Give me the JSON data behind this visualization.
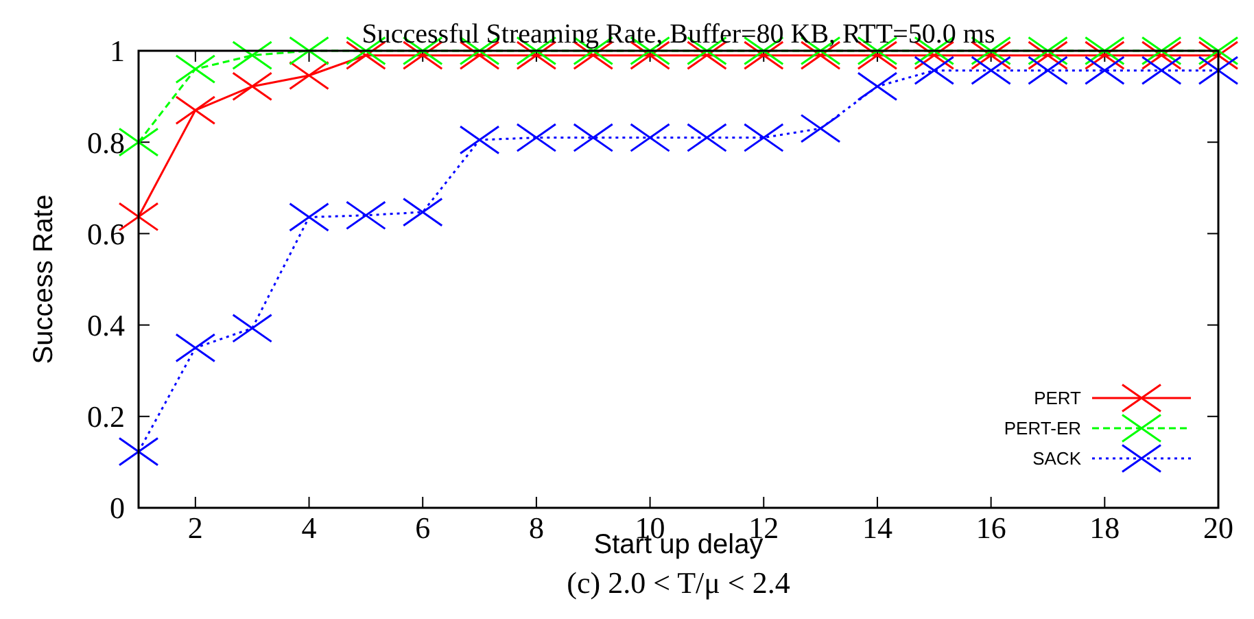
{
  "chart_data": {
    "type": "line",
    "title": "Successful Streaming Rate, Buffer=80 KB, RTT=50.0 ms",
    "xlabel": "Start up delay",
    "ylabel": "Success Rate",
    "annotations": [
      "(c) 2.0 < T/μ < 2.4"
    ],
    "x": [
      1,
      2,
      3,
      4,
      5,
      6,
      7,
      8,
      9,
      10,
      11,
      12,
      13,
      14,
      15,
      16,
      17,
      18,
      19,
      20
    ],
    "xlim": [
      1,
      20
    ],
    "xticks": [
      2,
      4,
      6,
      8,
      10,
      12,
      14,
      16,
      18,
      20
    ],
    "ylim": [
      0,
      1
    ],
    "yticks": [
      0,
      0.2,
      0.4,
      0.6,
      0.8,
      1
    ],
    "grid": false,
    "legend": "bottom right",
    "series": [
      {
        "name": "PERT",
        "color": "#ff0000",
        "marker": "cross",
        "line_style": "solid",
        "values": [
          0.637,
          0.87,
          0.922,
          0.946,
          0.99,
          0.99,
          0.99,
          0.99,
          0.99,
          0.99,
          0.99,
          0.99,
          0.99,
          0.99,
          0.99,
          0.99,
          0.99,
          0.99,
          0.99,
          0.99
        ]
      },
      {
        "name": "PERT-ER",
        "color": "#00ff00",
        "marker": "cross",
        "line_style": "dashed",
        "values": [
          0.8,
          0.96,
          0.99,
          1,
          1,
          1,
          1,
          1,
          1,
          1,
          1,
          1,
          1,
          1,
          1,
          1,
          1,
          1,
          1,
          1
        ]
      },
      {
        "name": "SACK",
        "color": "#0000ff",
        "marker": "cross",
        "line_style": "dotted",
        "values": [
          0.123,
          0.35,
          0.393,
          0.636,
          0.64,
          0.647,
          0.805,
          0.81,
          0.81,
          0.81,
          0.81,
          0.81,
          0.83,
          0.922,
          0.957,
          0.957,
          0.957,
          0.957,
          0.957,
          0.957
        ]
      }
    ]
  }
}
